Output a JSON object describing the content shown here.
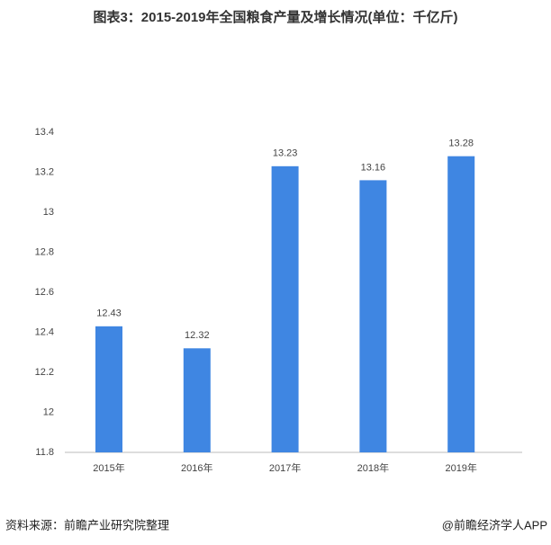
{
  "chart_data": {
    "type": "bar",
    "title": "图表3：2015-2019年全国粮食产量及增长情况(单位：千亿斤)",
    "categories": [
      "2015年",
      "2016年",
      "2017年",
      "2018年",
      "2019年"
    ],
    "values": [
      12.43,
      12.32,
      13.23,
      13.16,
      13.28
    ],
    "color": "#3f86e2",
    "ylim": [
      11.8,
      13.4
    ],
    "yticks": [
      11.8,
      12,
      12.2,
      12.4,
      12.6,
      12.8,
      13,
      13.2,
      13.4
    ],
    "grid": false,
    "source": "资料来源：前瞻产业研究院整理",
    "credit": "@前瞻经济学人APP"
  }
}
